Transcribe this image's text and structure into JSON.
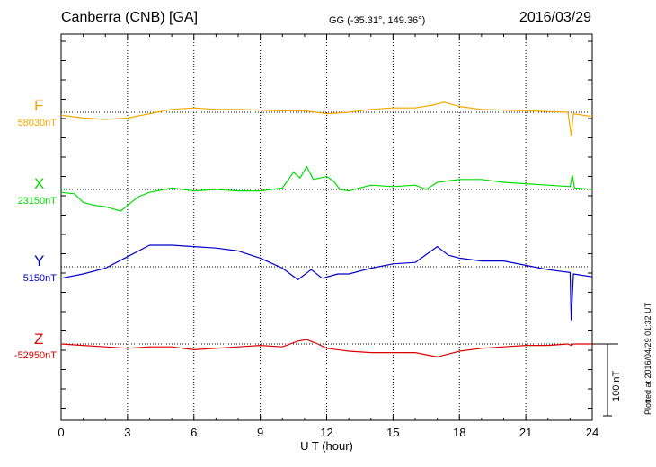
{
  "header": {
    "station": "Canberra (CNB)  [GA]",
    "coords": "GG (-35.31°, 149.36°)",
    "date": "2016/03/29"
  },
  "side_note": "Plotted at 2016/04/29 01:32 UT",
  "scale_label": "100 nT",
  "colors": {
    "F": "#f5a700",
    "X": "#00dd00",
    "Y": "#0000cc",
    "Z": "#dd0000"
  },
  "chart_data": {
    "type": "line",
    "xlabel": "U T (hour)",
    "xlim": [
      0,
      24
    ],
    "x_ticks": [
      0,
      3,
      6,
      9,
      12,
      15,
      18,
      21,
      24
    ],
    "grid": true,
    "scale_bar_nT": 100,
    "series": [
      {
        "name": "F",
        "baseline_label": "58030nT",
        "baseline_nT": 58030,
        "points": [
          [
            0,
            -4
          ],
          [
            1,
            -8
          ],
          [
            2,
            -10
          ],
          [
            3,
            -8
          ],
          [
            4,
            -2
          ],
          [
            5,
            4
          ],
          [
            6,
            6
          ],
          [
            7,
            4
          ],
          [
            8,
            4
          ],
          [
            9,
            3
          ],
          [
            10,
            2
          ],
          [
            11,
            2
          ],
          [
            12,
            -2
          ],
          [
            13,
            0
          ],
          [
            14,
            4
          ],
          [
            15,
            6
          ],
          [
            16,
            6
          ],
          [
            16.8,
            10
          ],
          [
            17.3,
            14
          ],
          [
            18,
            8
          ],
          [
            19,
            4
          ],
          [
            20,
            3
          ],
          [
            21,
            2
          ],
          [
            22,
            1
          ],
          [
            22.9,
            0
          ],
          [
            23.05,
            -32
          ],
          [
            23.15,
            -2
          ],
          [
            24,
            -6
          ]
        ]
      },
      {
        "name": "X",
        "baseline_label": "23150nT",
        "baseline_nT": 23150,
        "points": [
          [
            0,
            -4
          ],
          [
            0.6,
            -6
          ],
          [
            1,
            -18
          ],
          [
            1.5,
            -22
          ],
          [
            2,
            -24
          ],
          [
            2.7,
            -30
          ],
          [
            3,
            -22
          ],
          [
            3.5,
            -10
          ],
          [
            4,
            -4
          ],
          [
            5,
            2
          ],
          [
            6,
            -2
          ],
          [
            7,
            0
          ],
          [
            8,
            -2
          ],
          [
            9,
            -2
          ],
          [
            10,
            2
          ],
          [
            10.5,
            24
          ],
          [
            10.8,
            16
          ],
          [
            11.1,
            32
          ],
          [
            11.4,
            14
          ],
          [
            12,
            18
          ],
          [
            12.3,
            12
          ],
          [
            12.6,
            0
          ],
          [
            13,
            -2
          ],
          [
            14,
            6
          ],
          [
            15,
            4
          ],
          [
            16,
            6
          ],
          [
            16.5,
            0
          ],
          [
            17,
            10
          ],
          [
            17.5,
            12
          ],
          [
            18,
            14
          ],
          [
            19,
            14
          ],
          [
            20,
            10
          ],
          [
            21,
            8
          ],
          [
            22,
            6
          ],
          [
            23,
            4
          ],
          [
            23.1,
            20
          ],
          [
            23.2,
            2
          ],
          [
            24,
            0
          ]
        ]
      },
      {
        "name": "Y",
        "baseline_label": "5150nT",
        "baseline_nT": 5150,
        "points": [
          [
            0,
            -16
          ],
          [
            1,
            -10
          ],
          [
            2,
            -2
          ],
          [
            3,
            14
          ],
          [
            4,
            30
          ],
          [
            5,
            30
          ],
          [
            6,
            28
          ],
          [
            7,
            26
          ],
          [
            8,
            22
          ],
          [
            9,
            12
          ],
          [
            10,
            -2
          ],
          [
            10.7,
            -18
          ],
          [
            11.3,
            -4
          ],
          [
            11.8,
            -16
          ],
          [
            12.5,
            -10
          ],
          [
            13,
            -10
          ],
          [
            14,
            -2
          ],
          [
            15,
            4
          ],
          [
            16,
            6
          ],
          [
            17,
            28
          ],
          [
            17.5,
            16
          ],
          [
            18,
            12
          ],
          [
            19,
            8
          ],
          [
            20,
            8
          ],
          [
            21,
            2
          ],
          [
            22,
            -4
          ],
          [
            23,
            -8
          ],
          [
            23.05,
            -74
          ],
          [
            23.15,
            -10
          ],
          [
            24,
            -14
          ]
        ]
      },
      {
        "name": "Z",
        "baseline_label": "-52950nT",
        "baseline_nT": -52950,
        "points": [
          [
            0,
            0
          ],
          [
            1,
            -2
          ],
          [
            2,
            -4
          ],
          [
            3,
            -6
          ],
          [
            4,
            -4
          ],
          [
            5,
            -4
          ],
          [
            6,
            -8
          ],
          [
            7,
            -6
          ],
          [
            8,
            -4
          ],
          [
            9,
            -2
          ],
          [
            10,
            -4
          ],
          [
            10.7,
            4
          ],
          [
            11.1,
            6
          ],
          [
            11.6,
            0
          ],
          [
            12,
            -6
          ],
          [
            13,
            -10
          ],
          [
            14,
            -12
          ],
          [
            15,
            -12
          ],
          [
            16,
            -12
          ],
          [
            17,
            -18
          ],
          [
            18,
            -10
          ],
          [
            19,
            -6
          ],
          [
            20,
            -4
          ],
          [
            21,
            -2
          ],
          [
            22,
            -2
          ],
          [
            22.9,
            0
          ],
          [
            23.05,
            -2
          ],
          [
            23.15,
            0
          ],
          [
            24,
            0
          ]
        ]
      }
    ]
  }
}
